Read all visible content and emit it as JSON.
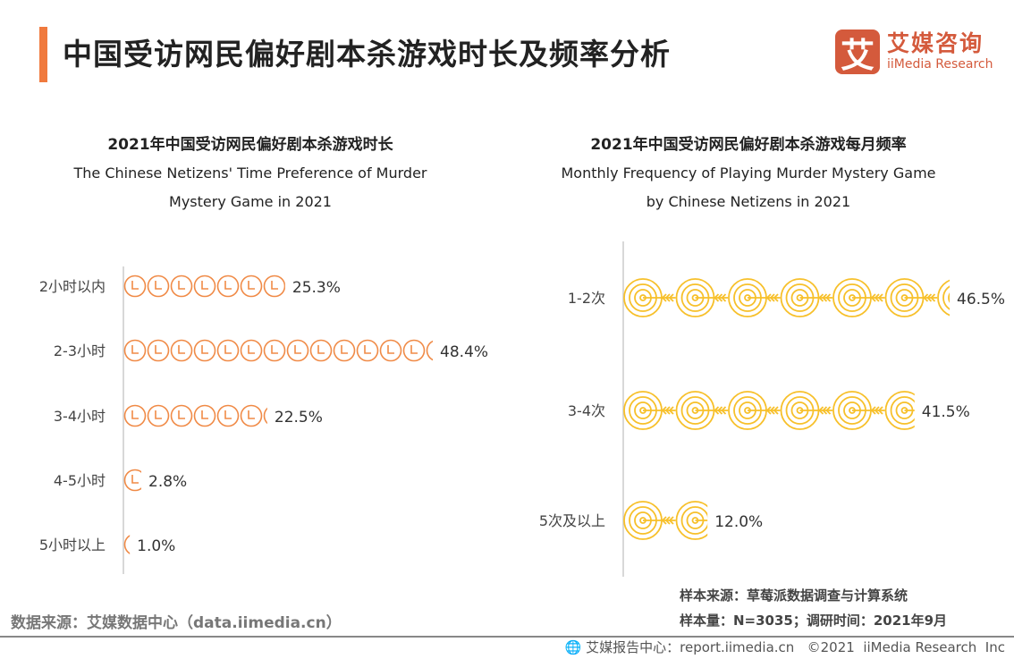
{
  "header": {
    "title": "中国受访网民偏好剧本杀游戏时长及频率分析",
    "logo": {
      "mark": "艾",
      "cn": "艾媒咨询",
      "en": "iiMedia Research"
    }
  },
  "colors": {
    "accent": "#f07a3e",
    "clock_icon": "#f08a46",
    "target_icon": "#f7c02a",
    "logo": "#d45a3c"
  },
  "chart_data": [
    {
      "type": "bar",
      "orientation": "horizontal-pictogram",
      "icon": "clock-icon",
      "title_cn": "2021年中国受访网民偏好剧本杀游戏时长",
      "title_en_1": "The Chinese Netizens' Time Preference of Murder",
      "title_en_2": "Mystery Game in 2021",
      "categories": [
        "2小时以内",
        "2-3小时",
        "3-4小时",
        "4-5小时",
        "5小时以上"
      ],
      "values": [
        25.3,
        48.4,
        22.5,
        2.8,
        1.0
      ],
      "labels": [
        "25.3%",
        "48.4%",
        "22.5%",
        "2.8%",
        "1.0%"
      ],
      "unit": "%"
    },
    {
      "type": "bar",
      "orientation": "horizontal-pictogram",
      "icon": "target-icon",
      "title_cn": "2021年中国受访网民偏好剧本杀游戏每月频率",
      "title_en_1": "Monthly Frequency of Playing Murder Mystery Game",
      "title_en_2": "by Chinese Netizens in 2021",
      "categories": [
        "1-2次",
        "3-4次",
        "5次及以上"
      ],
      "values": [
        46.5,
        41.5,
        12.0
      ],
      "labels": [
        "46.5%",
        "41.5%",
        "12.0%"
      ],
      "unit": "%"
    }
  ],
  "source": {
    "left": "数据来源：艾媒数据中心（data.iimedia.cn）",
    "sample_source": "样本来源：草莓派数据调查与计算系统",
    "sample_size": "样本量：N=3035；调研时间：2021年9月"
  },
  "footer": {
    "text": "艾媒报告中心：report.iimedia.cn   ©2021  iiMedia Research  Inc"
  }
}
